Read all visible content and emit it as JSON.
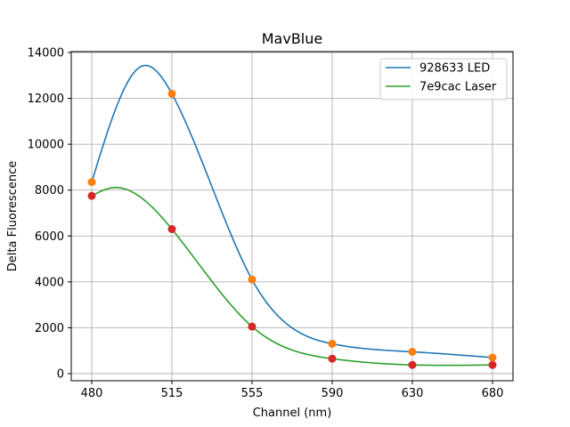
{
  "chart_data": {
    "type": "line",
    "title": "MavBlue",
    "xlabel": "Channel (nm)",
    "ylabel": "Delta Fluorescence",
    "x": [
      "480",
      "515",
      "555",
      "590",
      "630",
      "680"
    ],
    "ylim": [
      0,
      14000
    ],
    "yticks": [
      "0",
      "2000",
      "4000",
      "6000",
      "8000",
      "10000",
      "12000",
      "14000"
    ],
    "grid": true,
    "legend_position": "top-right",
    "series": [
      {
        "name": "928633 LED",
        "line_color": "#1f77b4",
        "marker_color": "#ff7f0e",
        "values": [
          8350,
          12200,
          4100,
          1300,
          950,
          700
        ],
        "curve_peak": {
          "x_channel_index": 0.62,
          "value": 13400
        }
      },
      {
        "name": "7e9cac Laser",
        "line_color": "#2ca02c",
        "marker_color": "#d62728",
        "values": [
          7750,
          6300,
          2050,
          650,
          380,
          380
        ],
        "curve_peak": {
          "x_channel_index": 0.25,
          "value": 8100
        }
      }
    ]
  }
}
